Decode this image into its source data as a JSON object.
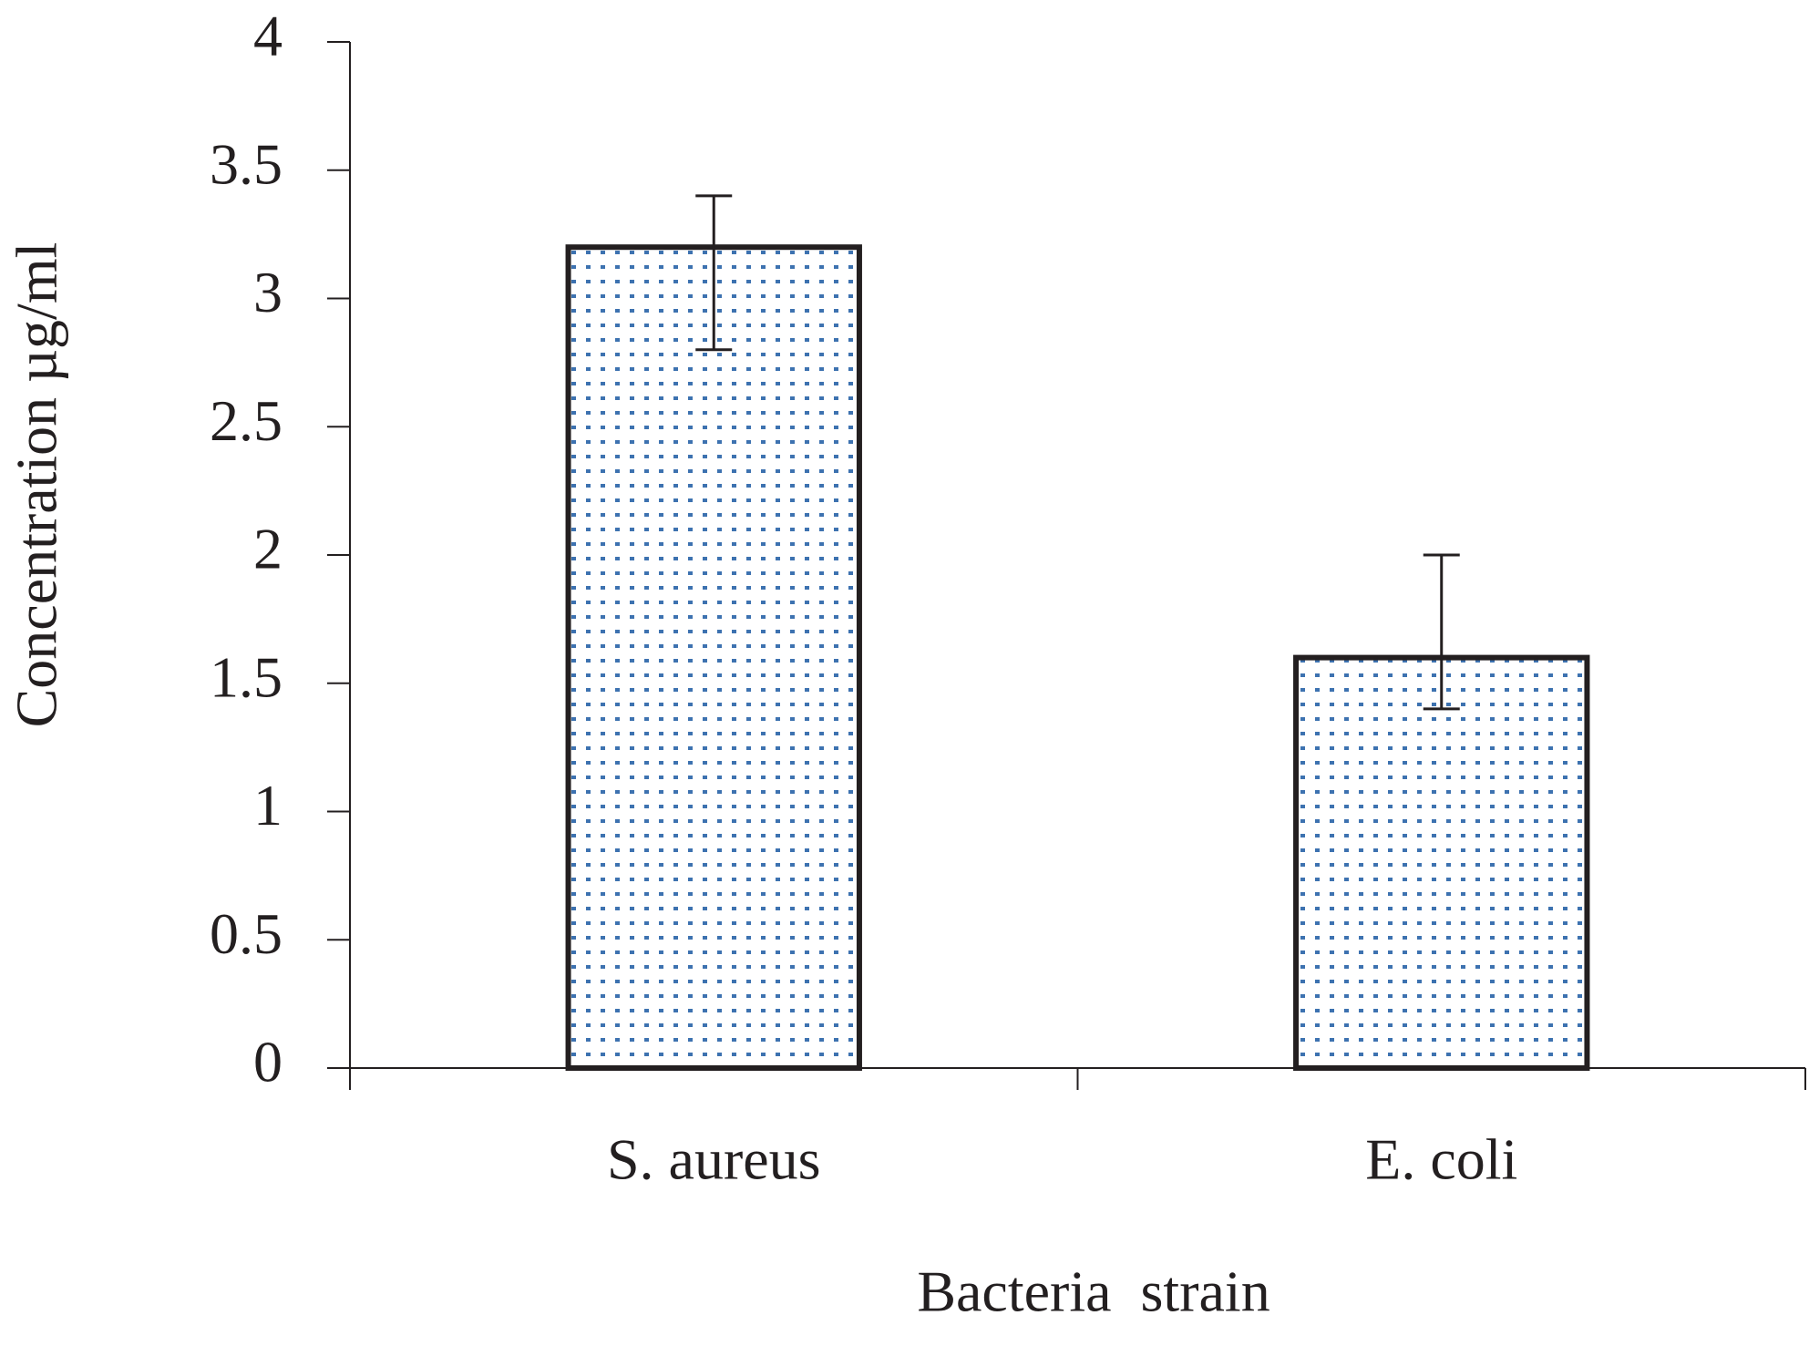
{
  "chart_data": {
    "type": "bar",
    "x_label": "Bacteria  strain",
    "y_label": "Concentration µg/ml",
    "categories": [
      "S. aureus",
      "E. coli"
    ],
    "values": [
      3.2,
      1.6
    ],
    "error_minus": [
      0.4,
      0.2
    ],
    "error_plus": [
      0.2,
      0.4
    ],
    "color": "#3d72b0",
    "ylim": [
      0,
      4
    ],
    "yticks": [
      0,
      0.5,
      1,
      1.5,
      2,
      2.5,
      3,
      3.5,
      4
    ],
    "grid": false
  }
}
